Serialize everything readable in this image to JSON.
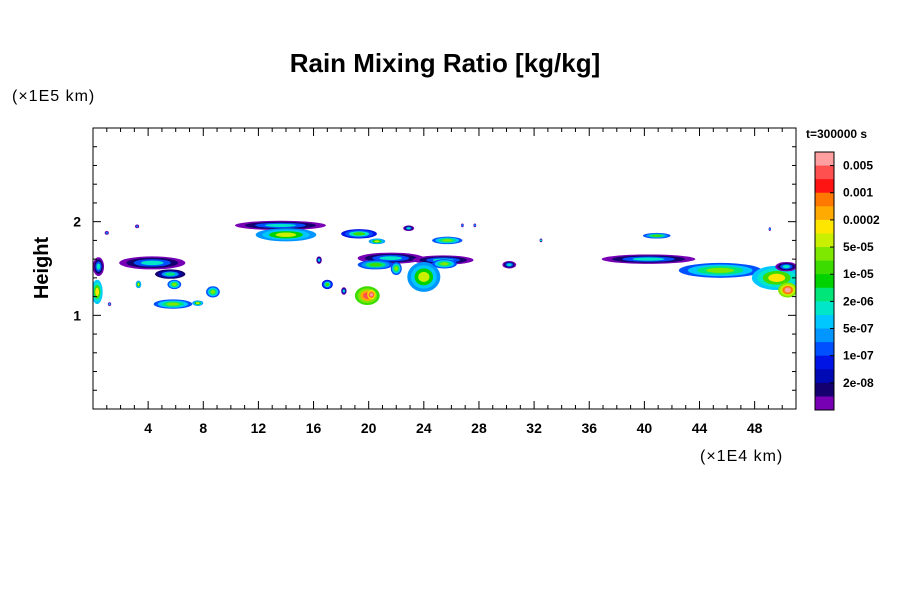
{
  "chart_data": {
    "type": "heatmap",
    "title": "Rain Mixing Ratio [kg/kg]",
    "ylabel": "Height",
    "xlabel": "",
    "y_unit_label": "(×1E5 km)",
    "x_unit_label": "(×1E4 km)",
    "time_label": "t=300000 s",
    "xlim": [
      0,
      51
    ],
    "ylim": [
      0,
      3
    ],
    "x_ticks": [
      4,
      8,
      12,
      16,
      20,
      24,
      28,
      32,
      36,
      40,
      44,
      48
    ],
    "y_ticks": [
      1,
      2
    ],
    "x_minor_step": 1,
    "y_minor_step": 0.2,
    "colorbar": {
      "labels": [
        "0.005",
        "0.001",
        "0.0002",
        "5e-05",
        "1e-05",
        "2e-06",
        "5e-07",
        "1e-07",
        "2e-08"
      ],
      "colors": [
        "#ff9f9f",
        "#ff5050",
        "#ff1414",
        "#ff7800",
        "#ffaa00",
        "#ffe600",
        "#c8f000",
        "#7ee800",
        "#3cdc00",
        "#00d200",
        "#00e678",
        "#00e6c8",
        "#00c8ff",
        "#0096ff",
        "#0050ff",
        "#0014e6",
        "#000ab4",
        "#14006e",
        "#7800b4"
      ]
    },
    "regions": [
      {
        "cx": 13.6,
        "cy": 1.96,
        "rx": 3.3,
        "ry": 0.05,
        "level": 0.85
      },
      {
        "cx": 14.0,
        "cy": 1.86,
        "rx": 2.2,
        "ry": 0.07,
        "level": 0.55
      },
      {
        "cx": 4.3,
        "cy": 1.56,
        "rx": 2.4,
        "ry": 0.07,
        "level": 0.85
      },
      {
        "cx": 5.6,
        "cy": 1.44,
        "rx": 1.1,
        "ry": 0.05,
        "level": 0.8
      },
      {
        "cx": 0.4,
        "cy": 1.52,
        "rx": 0.4,
        "ry": 0.1,
        "level": 0.85
      },
      {
        "cx": 0.3,
        "cy": 1.25,
        "rx": 0.4,
        "ry": 0.13,
        "level": 0.5
      },
      {
        "cx": 5.8,
        "cy": 1.12,
        "rx": 1.4,
        "ry": 0.05,
        "level": 0.6
      },
      {
        "cx": 5.9,
        "cy": 1.33,
        "rx": 0.5,
        "ry": 0.05,
        "level": 0.6
      },
      {
        "cx": 8.7,
        "cy": 1.25,
        "rx": 0.5,
        "ry": 0.06,
        "level": 0.6
      },
      {
        "cx": 7.6,
        "cy": 1.13,
        "rx": 0.4,
        "ry": 0.03,
        "level": 0.55
      },
      {
        "cx": 3.3,
        "cy": 1.33,
        "rx": 0.2,
        "ry": 0.04,
        "level": 0.55
      },
      {
        "cx": 21.6,
        "cy": 1.61,
        "rx": 2.4,
        "ry": 0.06,
        "level": 0.85
      },
      {
        "cx": 20.5,
        "cy": 1.54,
        "rx": 1.3,
        "ry": 0.05,
        "level": 0.65
      },
      {
        "cx": 22.0,
        "cy": 1.5,
        "rx": 0.4,
        "ry": 0.07,
        "level": 0.6
      },
      {
        "cx": 19.9,
        "cy": 1.21,
        "rx": 0.9,
        "ry": 0.1,
        "level": 0.3
      },
      {
        "cx": 20.2,
        "cy": 1.22,
        "rx": 0.3,
        "ry": 0.05,
        "level": 0.15
      },
      {
        "cx": 25.4,
        "cy": 1.59,
        "rx": 2.2,
        "ry": 0.05,
        "level": 0.85
      },
      {
        "cx": 24.0,
        "cy": 1.41,
        "rx": 1.2,
        "ry": 0.16,
        "level": 0.55
      },
      {
        "cx": 25.5,
        "cy": 1.55,
        "rx": 0.9,
        "ry": 0.05,
        "level": 0.6
      },
      {
        "cx": 19.3,
        "cy": 1.87,
        "rx": 1.3,
        "ry": 0.05,
        "level": 0.7
      },
      {
        "cx": 20.6,
        "cy": 1.79,
        "rx": 0.6,
        "ry": 0.03,
        "level": 0.55
      },
      {
        "cx": 25.7,
        "cy": 1.8,
        "rx": 1.1,
        "ry": 0.04,
        "level": 0.6
      },
      {
        "cx": 22.9,
        "cy": 1.93,
        "rx": 0.4,
        "ry": 0.03,
        "level": 0.85
      },
      {
        "cx": 17.0,
        "cy": 1.33,
        "rx": 0.4,
        "ry": 0.05,
        "level": 0.7
      },
      {
        "cx": 16.4,
        "cy": 1.59,
        "rx": 0.2,
        "ry": 0.04,
        "level": 0.85
      },
      {
        "cx": 30.2,
        "cy": 1.54,
        "rx": 0.5,
        "ry": 0.04,
        "level": 0.85
      },
      {
        "cx": 18.2,
        "cy": 1.26,
        "rx": 0.2,
        "ry": 0.04,
        "level": 0.85
      },
      {
        "cx": 40.3,
        "cy": 1.6,
        "rx": 3.4,
        "ry": 0.05,
        "level": 0.85
      },
      {
        "cx": 45.5,
        "cy": 1.48,
        "rx": 3.0,
        "ry": 0.08,
        "level": 0.6
      },
      {
        "cx": 49.6,
        "cy": 1.4,
        "rx": 1.8,
        "ry": 0.13,
        "level": 0.5
      },
      {
        "cx": 50.4,
        "cy": 1.27,
        "rx": 0.7,
        "ry": 0.08,
        "level": 0.25
      },
      {
        "cx": 50.3,
        "cy": 1.52,
        "rx": 0.8,
        "ry": 0.05,
        "level": 0.85
      },
      {
        "cx": 40.9,
        "cy": 1.85,
        "rx": 1.0,
        "ry": 0.03,
        "level": 0.65
      },
      {
        "cx": 32.5,
        "cy": 1.8,
        "rx": 0.1,
        "ry": 0.02,
        "level": 0.85
      },
      {
        "cx": 3.2,
        "cy": 1.95,
        "rx": 0.15,
        "ry": 0.02,
        "level": 0.95
      },
      {
        "cx": 1.0,
        "cy": 1.88,
        "rx": 0.15,
        "ry": 0.02,
        "level": 0.95
      },
      {
        "cx": 27.7,
        "cy": 1.96,
        "rx": 0.1,
        "ry": 0.02,
        "level": 0.95
      },
      {
        "cx": 26.8,
        "cy": 1.96,
        "rx": 0.1,
        "ry": 0.02,
        "level": 0.95
      },
      {
        "cx": 49.1,
        "cy": 1.92,
        "rx": 0.08,
        "ry": 0.02,
        "level": 0.95
      },
      {
        "cx": 1.2,
        "cy": 1.12,
        "rx": 0.12,
        "ry": 0.02,
        "level": 0.9
      }
    ]
  }
}
